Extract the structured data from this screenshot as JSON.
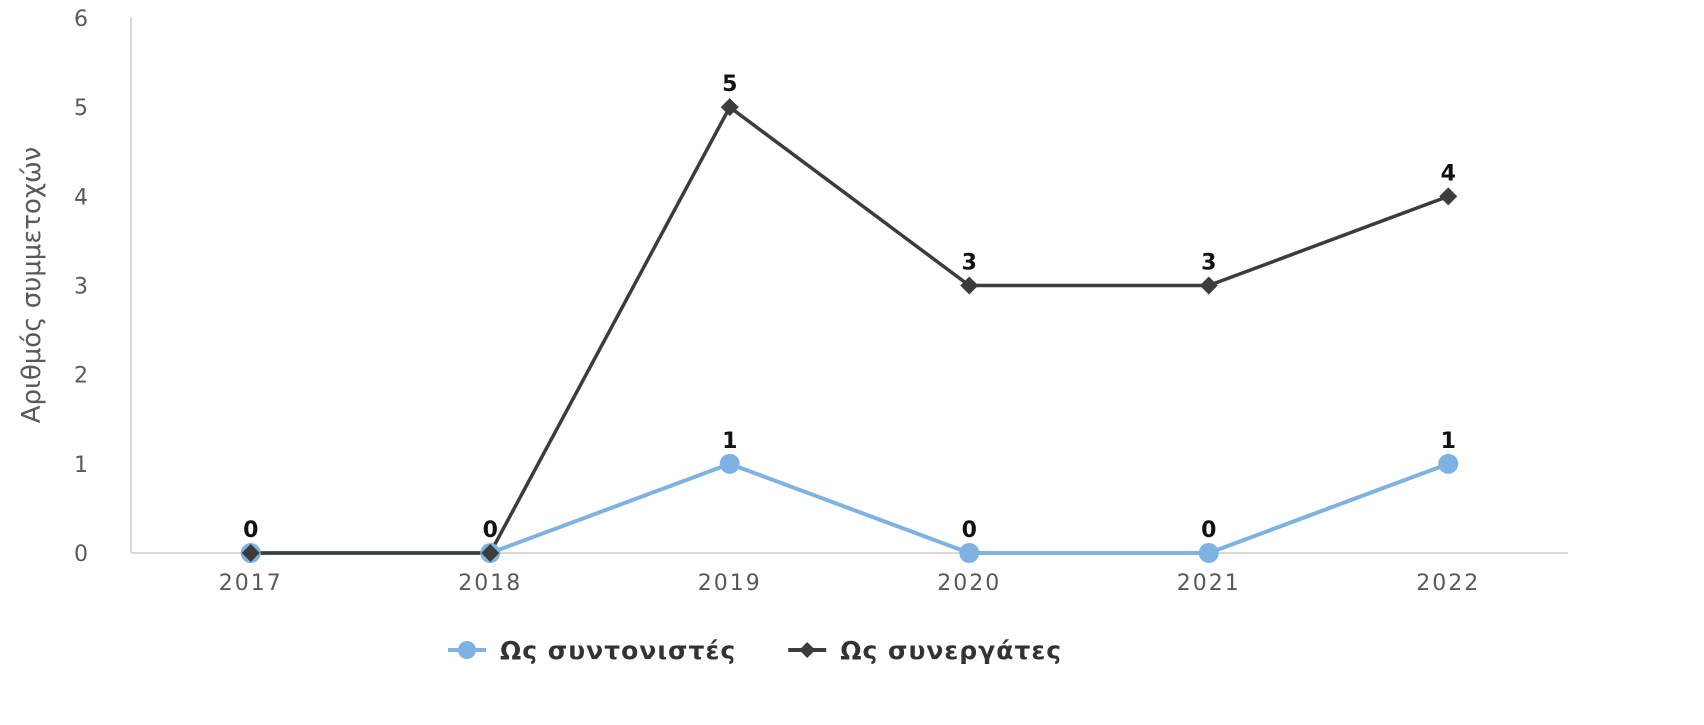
{
  "chart_data": {
    "type": "line",
    "title": "",
    "xlabel": "",
    "ylabel": "Αριθμός συμμετοχών",
    "categories": [
      "2017",
      "2018",
      "2019",
      "2020",
      "2021",
      "2022"
    ],
    "ylim": [
      0,
      6
    ],
    "yticks": [
      "0",
      "1",
      "2",
      "3",
      "4",
      "5",
      "6"
    ],
    "grid": false,
    "legend_position": "bottom",
    "series": [
      {
        "name": "Ως συντονιστές",
        "values": [
          0,
          0,
          1,
          0,
          0,
          1
        ],
        "color": "#7eb2e2",
        "marker": "circle"
      },
      {
        "name": "Ως συνεργάτες",
        "values": [
          0,
          0,
          5,
          3,
          3,
          4
        ],
        "color": "#3c3c3c",
        "marker": "diamond"
      }
    ],
    "data_labels": true
  }
}
